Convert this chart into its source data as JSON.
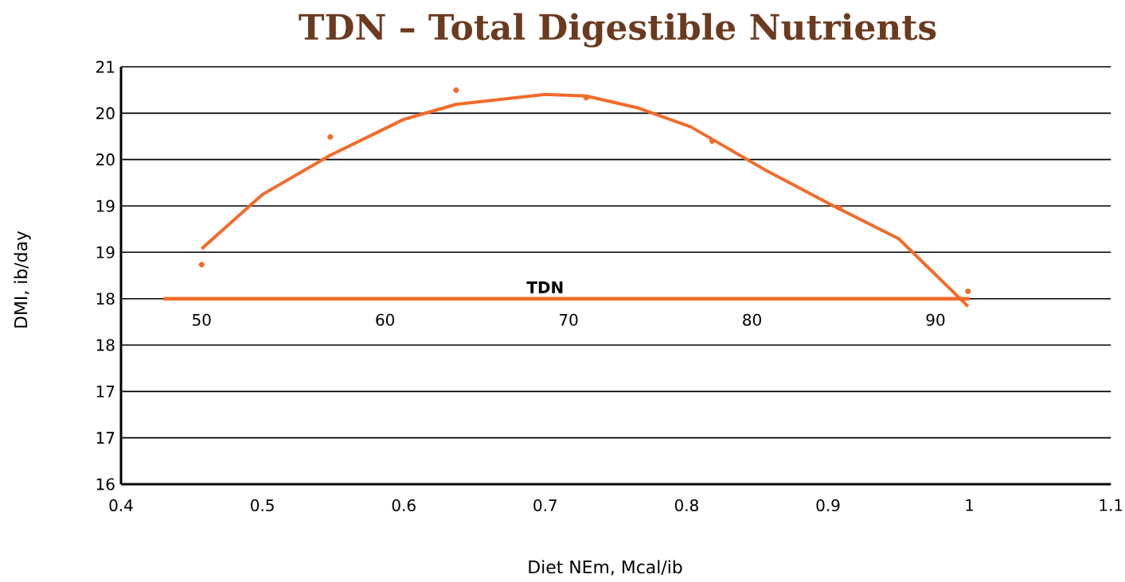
{
  "chart_data": {
    "type": "scatter",
    "title": "TDN – Total Digestible Nutrients",
    "xlabel": "Diet NEm, Mcal/ib",
    "ylabel": "DMI, ib/day",
    "xlim": [
      0.4,
      1.1
    ],
    "ylim": [
      16,
      21
    ],
    "xticks": [
      0.4,
      0.5,
      0.6,
      0.7,
      0.8,
      0.9,
      {
        "value": 1.0,
        "label": "1"
      },
      1.1
    ],
    "yticks": [
      16,
      {
        "value": 16.556,
        "label": "17"
      },
      {
        "value": 17.111,
        "label": "17"
      },
      {
        "value": 17.667,
        "label": "18"
      },
      {
        "value": 18.222,
        "label": "18"
      },
      {
        "value": 18.778,
        "label": "19"
      },
      {
        "value": 19.333,
        "label": "19"
      },
      {
        "value": 19.889,
        "label": "20"
      },
      {
        "value": 20.444,
        "label": "20"
      },
      21
    ],
    "grid": "y",
    "series": [
      {
        "color": "#f26b2a",
        "marker": "circle",
        "x": [
          0.457,
          0.548,
          0.637,
          0.729,
          0.818,
          0.908,
          0.999
        ],
        "values": [
          18.63,
          20.16,
          20.72,
          20.63,
          20.11,
          19.31,
          18.31
        ]
      },
      {
        "type": "line",
        "color": "#f26b2a",
        "marker": "none",
        "x": [
          0.457,
          0.5,
          0.548,
          0.6,
          0.637,
          0.7,
          0.729,
          0.765,
          0.803,
          0.855,
          0.903,
          0.95,
          0.999
        ],
        "values": [
          18.82,
          19.47,
          19.94,
          20.37,
          20.55,
          20.67,
          20.65,
          20.51,
          20.28,
          19.77,
          19.34,
          18.94,
          18.13
        ]
      }
    ],
    "ref_lines": [
      {
        "axis": "y",
        "value": 18.222,
        "label": "TDN",
        "color": "#f26b2a"
      }
    ],
    "annotations": [
      "50",
      "60",
      "70",
      "80",
      "90"
    ]
  }
}
